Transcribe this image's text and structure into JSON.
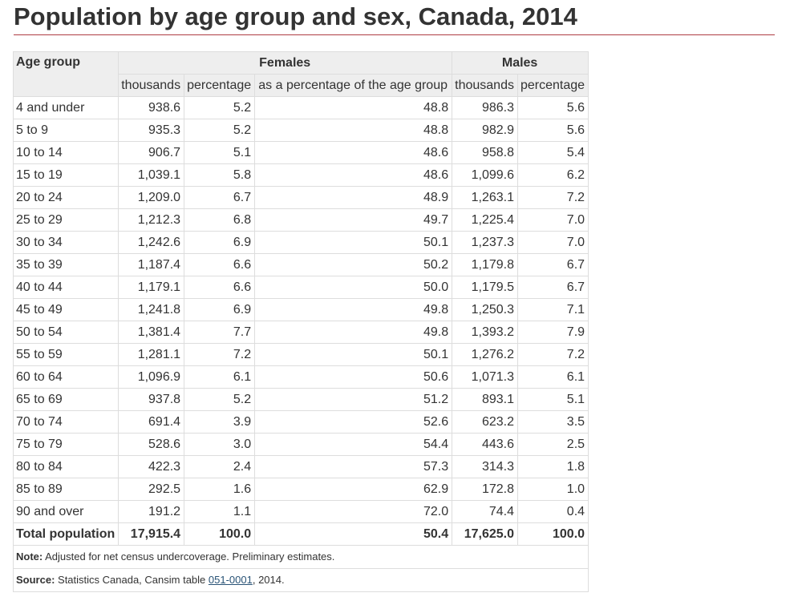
{
  "page": {
    "title": "Population by age group and sex, Canada, 2014"
  },
  "table": {
    "header": {
      "age_group": "Age group",
      "females": "Females",
      "males": "Males",
      "sub": [
        "thousands",
        "percentage",
        "as a percentage of the age group",
        "thousands",
        "percentage"
      ]
    },
    "rows": [
      [
        "4 and under",
        "938.6",
        "5.2",
        "48.8",
        "986.3",
        "5.6"
      ],
      [
        "5 to 9",
        "935.3",
        "5.2",
        "48.8",
        "982.9",
        "5.6"
      ],
      [
        "10 to 14",
        "906.7",
        "5.1",
        "48.6",
        "958.8",
        "5.4"
      ],
      [
        "15 to 19",
        "1,039.1",
        "5.8",
        "48.6",
        "1,099.6",
        "6.2"
      ],
      [
        "20 to 24",
        "1,209.0",
        "6.7",
        "48.9",
        "1,263.1",
        "7.2"
      ],
      [
        "25 to 29",
        "1,212.3",
        "6.8",
        "49.7",
        "1,225.4",
        "7.0"
      ],
      [
        "30 to 34",
        "1,242.6",
        "6.9",
        "50.1",
        "1,237.3",
        "7.0"
      ],
      [
        "35 to 39",
        "1,187.4",
        "6.6",
        "50.2",
        "1,179.8",
        "6.7"
      ],
      [
        "40 to 44",
        "1,179.1",
        "6.6",
        "50.0",
        "1,179.5",
        "6.7"
      ],
      [
        "45 to 49",
        "1,241.8",
        "6.9",
        "49.8",
        "1,250.3",
        "7.1"
      ],
      [
        "50 to 54",
        "1,381.4",
        "7.7",
        "49.8",
        "1,393.2",
        "7.9"
      ],
      [
        "55 to 59",
        "1,281.1",
        "7.2",
        "50.1",
        "1,276.2",
        "7.2"
      ],
      [
        "60 to 64",
        "1,096.9",
        "6.1",
        "50.6",
        "1,071.3",
        "6.1"
      ],
      [
        "65 to 69",
        "937.8",
        "5.2",
        "51.2",
        "893.1",
        "5.1"
      ],
      [
        "70 to 74",
        "691.4",
        "3.9",
        "52.6",
        "623.2",
        "3.5"
      ],
      [
        "75 to 79",
        "528.6",
        "3.0",
        "54.4",
        "443.6",
        "2.5"
      ],
      [
        "80 to 84",
        "422.3",
        "2.4",
        "57.3",
        "314.3",
        "1.8"
      ],
      [
        "85 to 89",
        "292.5",
        "1.6",
        "62.9",
        "172.8",
        "1.0"
      ],
      [
        "90 and over",
        "191.2",
        "1.1",
        "72.0",
        "74.4",
        "0.4"
      ]
    ],
    "total": [
      "Total population",
      "17,915.4",
      "100.0",
      "50.4",
      "17,625.0",
      "100.0"
    ]
  },
  "footnotes": {
    "note_label": "Note:",
    "note_text": " Adjusted for net census undercoverage. Preliminary estimates.",
    "source_label": "Source:",
    "source_pre": " Statistics Canada, Cansim table ",
    "source_link": "051-0001",
    "source_post": ", 2014."
  },
  "colors": {
    "title_rule": "#af3c43",
    "header_bg": "#eeeeee",
    "border": "#dddddd",
    "link": "#295376"
  }
}
